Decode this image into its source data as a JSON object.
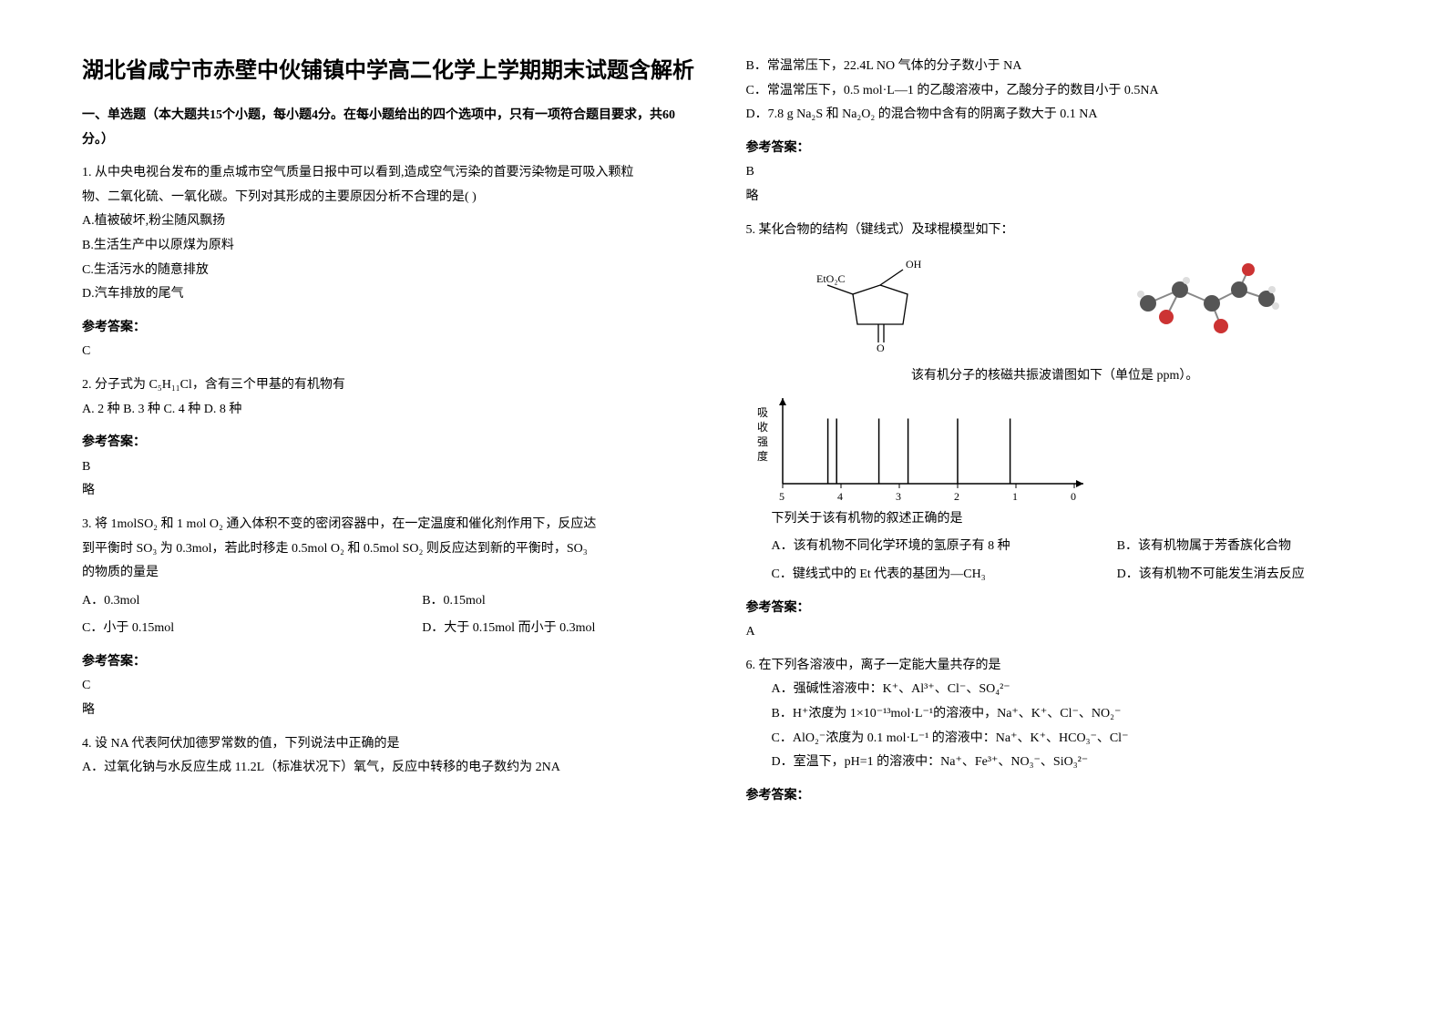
{
  "title": "湖北省咸宁市赤壁中伙铺镇中学高二化学上学期期末试题含解析",
  "section1": "一、单选题（本大题共15个小题，每小题4分。在每小题给出的四个选项中，只有一项符合题目要求，共60分。）",
  "q1": {
    "stem1": "1. 从中央电视台发布的重点城市空气质量日报中可以看到,造成空气污染的首要污染物是可吸入颗粒",
    "stem2": "物、二氧化硫、一氧化碳。下列对其形成的主要原因分析不合理的是(      )",
    "A": "A.植被破坏,粉尘随风飘扬",
    "B": "B.生活生产中以原煤为原料",
    "C": "C.生活污水的随意排放",
    "D": "D.汽车排放的尾气",
    "ansLabel": "参考答案：",
    "ans": "C"
  },
  "q2": {
    "stem": "2. 分子式为 C₅H₁₁Cl，含有三个甲基的有机物有",
    "opts": "A. 2 种      B. 3 种      C. 4 种      D. 8 种",
    "ansLabel": "参考答案：",
    "ans": "B",
    "extra": "略"
  },
  "q3": {
    "stem1": "3. 将 1molSO₂ 和 1 mol O₂ 通入体积不变的密闭容器中，在一定温度和催化剂作用下，反应达",
    "stem2": "到平衡时 SO₃ 为 0.3mol，若此时移走 0.5mol O₂ 和 0.5mol SO₂ 则反应达到新的平衡时，SO₃",
    "stem3": "的物质的量是",
    "A": "A．0.3mol",
    "B": "B．0.15mol",
    "C": "C．小于 0.15mol",
    "D": "D．大于 0.15mol 而小于 0.3mol",
    "ansLabel": "参考答案：",
    "ans": "C",
    "extra": "略"
  },
  "q4": {
    "stem": "4. 设 NA 代表阿伏加德罗常数的值，下列说法中正确的是",
    "A": "A．过氧化钠与水反应生成 11.2L（标准状况下）氧气，反应中转移的电子数约为 2NA",
    "B": "B．常温常压下，22.4L NO 气体的分子数小于 NA",
    "C": "C．常温常压下，0.5 mol·L—1 的乙酸溶液中，乙酸分子的数目小于 0.5NA",
    "D": "D．7.8 g Na₂S 和 Na₂O₂ 的混合物中含有的阴离子数大于 0.1 NA",
    "ansLabel": "参考答案：",
    "ans": "B",
    "extra": "略"
  },
  "q5": {
    "stem": "5. 某化合物的结构（键线式）及球棍模型如下：",
    "mid": "该有机分子的核磁共振波谱图如下（单位是 ppm）。",
    "post": "下列关于该有机物的叙述正确的是",
    "A": "A．该有机物不同化学环境的氢原子有 8 种",
    "B": "B．该有机物属于芳香族化合物",
    "C": "C．键线式中的 Et 代表的基团为—CH₃",
    "D": "D．该有机物不可能发生消去反应",
    "ansLabel": "参考答案：",
    "ans": "A",
    "chart": {
      "ylabel": "吸收强度",
      "ticks": [
        "5",
        "4",
        "3",
        "2",
        "1",
        "0"
      ],
      "peaks_x": [
        0.78,
        0.6,
        0.43,
        0.33,
        0.185,
        0.155
      ],
      "baseline_y": 0.8,
      "peak_height": 0.55,
      "axis_color": "#000000",
      "bg": "#ffffff"
    },
    "mol_label1": "EtO₂C",
    "mol_label2": "OH",
    "mol_label3": "O"
  },
  "q6": {
    "stem": "6. 在下列各溶液中，离子一定能大量共存的是",
    "A": "A．强碱性溶液中：K⁺、Al³⁺、Cl⁻、SO₄²⁻",
    "B": "B．H⁺浓度为 1×10⁻¹³mol·L⁻¹的溶液中，Na⁺、K⁺、Cl⁻、NO₂⁻",
    "C": "C．AlO₂⁻浓度为 0.1 mol·L⁻¹ 的溶液中：Na⁺、K⁺、HCO₃⁻、Cl⁻",
    "D": "D．室温下，pH=1 的溶液中：Na⁺、Fe³⁺、NO₃⁻、SiO₃²⁻",
    "ansLabel": "参考答案："
  }
}
